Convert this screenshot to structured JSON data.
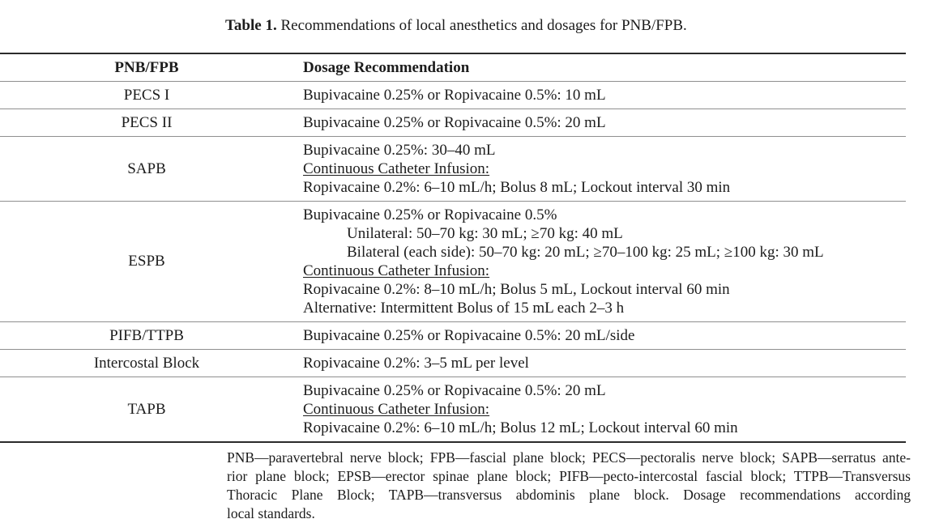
{
  "caption": {
    "label": "Table 1.",
    "text": "Recommendations of local anesthetics and dosages for PNB/FPB."
  },
  "table": {
    "headers": [
      "PNB/FPB",
      "Dosage Recommendation"
    ],
    "rows": [
      {
        "block": "PECS I",
        "lines": [
          {
            "text": "Bupivacaine 0.25% or Ropivacaine 0.5%: 10 mL",
            "style": "normal"
          }
        ]
      },
      {
        "block": "PECS II",
        "lines": [
          {
            "text": "Bupivacaine 0.25% or Ropivacaine 0.5%: 20 mL",
            "style": "normal"
          }
        ]
      },
      {
        "block": "SAPB",
        "lines": [
          {
            "text": "Bupivacaine 0.25%: 30–40 mL",
            "style": "normal"
          },
          {
            "text": "Continuous Catheter Infusion:",
            "style": "underline"
          },
          {
            "text": "Ropivacaine 0.2%: 6–10 mL/h; Bolus 8 mL; Lockout interval 30 min",
            "style": "normal"
          }
        ]
      },
      {
        "block": "ESPB",
        "lines": [
          {
            "text": "Bupivacaine 0.25% or Ropivacaine 0.5%",
            "style": "normal"
          },
          {
            "text": "Unilateral: 50–70 kg: 30 mL; ≥70 kg: 40 mL",
            "style": "indent"
          },
          {
            "text": "Bilateral (each side): 50–70 kg: 20 mL; ≥70–100 kg: 25 mL; ≥100 kg: 30 mL",
            "style": "indent"
          },
          {
            "text": "Continuous Catheter Infusion:",
            "style": "underline"
          },
          {
            "text": "Ropivacaine 0.2%: 8–10 mL/h; Bolus 5 mL, Lockout interval 60 min",
            "style": "normal"
          },
          {
            "text": "Alternative: Intermittent Bolus of 15 mL each 2–3 h",
            "style": "normal"
          }
        ]
      },
      {
        "block": "PIFB/TTPB",
        "lines": [
          {
            "text": "Bupivacaine 0.25% or Ropivacaine 0.5%: 20 mL/side",
            "style": "normal"
          }
        ]
      },
      {
        "block": "Intercostal Block",
        "lines": [
          {
            "text": "Ropivacaine 0.2%: 3–5 mL per level",
            "style": "normal"
          }
        ]
      },
      {
        "block": "TAPB",
        "lines": [
          {
            "text": "Bupivacaine 0.25% or Ropivacaine 0.5%: 20 mL",
            "style": "normal"
          },
          {
            "text": "Continuous Catheter Infusion:",
            "style": "underline"
          },
          {
            "text": "Ropivacaine 0.2%: 6–10 mL/h; Bolus 12 mL; Lockout interval 60 min",
            "style": "normal"
          }
        ]
      }
    ]
  },
  "footnote": {
    "lines": [
      "PNB—paravertebral nerve block; FPB—fascial plane block; PECS—pectoralis nerve block; SAPB—serratus ante-",
      "rior plane block; EPSB—erector spinae plane block; PIFB—pecto-intercostal fascial block; TTPB—Transversus",
      "Thoracic Plane Block; TAPB—transversus abdominis plane block. Dosage recommendations according",
      "local standards."
    ]
  },
  "colors": {
    "text": "#1c1c1c",
    "rule_heavy": "#2b2b2b",
    "rule_light": "#8f8f8f",
    "background": "#ffffff"
  }
}
